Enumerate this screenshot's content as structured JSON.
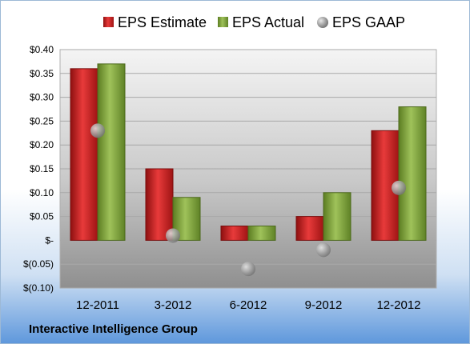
{
  "footer": {
    "company": "Interactive Intelligence Group"
  },
  "chart_data": {
    "type": "bar",
    "categories": [
      "12-2011",
      "3-2012",
      "6-2012",
      "9-2012",
      "12-2012"
    ],
    "series": [
      {
        "name": "EPS Estimate",
        "kind": "bar",
        "color": "#cc1f1f",
        "values": [
          0.36,
          0.15,
          0.03,
          0.05,
          0.23
        ]
      },
      {
        "name": "EPS Actual",
        "kind": "bar",
        "color": "#7fa33a",
        "values": [
          0.37,
          0.09,
          0.03,
          0.1,
          0.28
        ]
      },
      {
        "name": "EPS GAAP",
        "kind": "marker",
        "color": "#9a9a9a",
        "values": [
          0.23,
          0.01,
          -0.06,
          -0.02,
          0.11
        ]
      }
    ],
    "yticks": [
      {
        "value": 0.4,
        "label": "$0.40"
      },
      {
        "value": 0.35,
        "label": "$0.35"
      },
      {
        "value": 0.3,
        "label": "$0.30"
      },
      {
        "value": 0.25,
        "label": "$0.25"
      },
      {
        "value": 0.2,
        "label": "$0.20"
      },
      {
        "value": 0.15,
        "label": "$0.15"
      },
      {
        "value": 0.1,
        "label": "$0.10"
      },
      {
        "value": 0.05,
        "label": "$0.05"
      },
      {
        "value": 0.0,
        "label": "$-"
      },
      {
        "value": -0.05,
        "label": "$(0.05)"
      },
      {
        "value": -0.1,
        "label": "$(0.10)"
      }
    ],
    "ylim": [
      -0.1,
      0.4
    ],
    "legend_position": "top"
  }
}
